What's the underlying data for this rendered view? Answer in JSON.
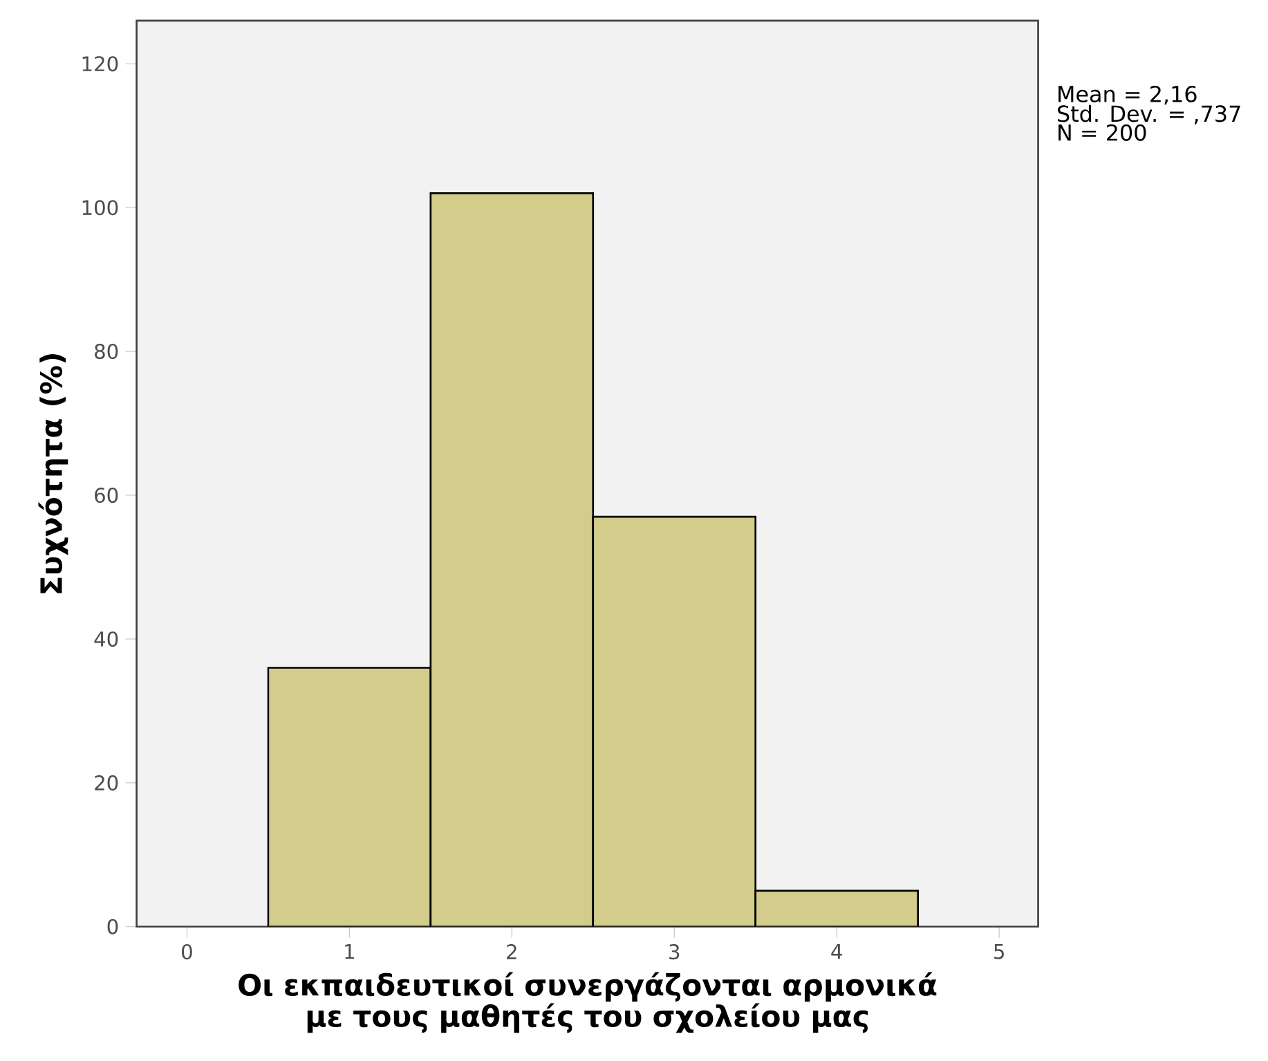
{
  "chart_data": {
    "type": "histogram",
    "xlabel": "Οι εκπαιδευτικοί συνεργάζονται αρμονικά με τους μαθητές του σχολείου μας",
    "ylabel": "Συχνότητα (%)",
    "bins": [
      0.5,
      1.5,
      2.5,
      3.5,
      4.5
    ],
    "values": [
      36,
      102,
      57,
      5
    ],
    "color": "#d3cd8c",
    "xlim": [
      -0.31,
      5.24
    ],
    "ylim": [
      0,
      126
    ],
    "xticks": [
      0,
      1,
      2,
      3,
      4,
      5
    ],
    "yticks": [
      0,
      20,
      40,
      60,
      80,
      100,
      120
    ],
    "annotations": [
      "Mean = 2,16",
      "Std. Dev. = ,737",
      "N = 200"
    ]
  }
}
